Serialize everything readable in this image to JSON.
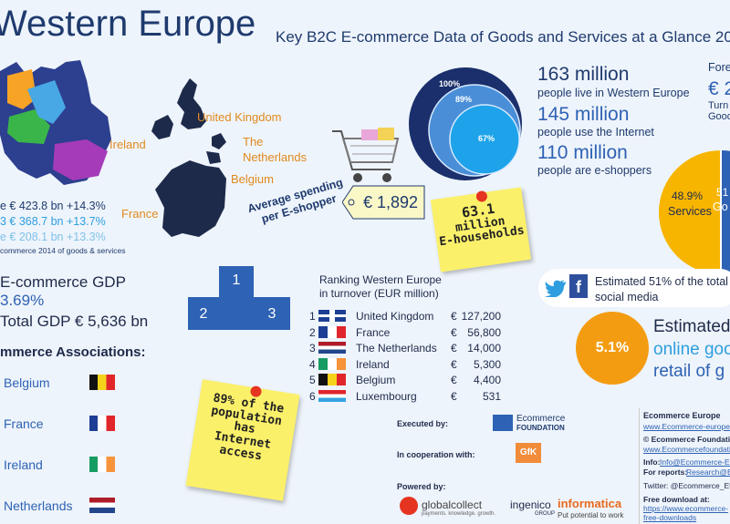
{
  "header": {
    "title": "Western Europe",
    "subtitle": "Key B2C E-commerce Data of Goods and Services at a Glance 201"
  },
  "map_labels": {
    "uk": "United Kingdom",
    "ireland": "Ireland",
    "netherlands_1": "The",
    "netherlands_2": "Netherlands",
    "belgium": "Belgium",
    "france": "France"
  },
  "turnover": {
    "line1": "e € 423.8 bn +14.3%",
    "line2": "3 € 368.7 bn +13.7%",
    "line3": "e € 208.1 bn +13.3%",
    "caption": "commerce 2014 of goods & services"
  },
  "spending": {
    "label_1": "Average spending",
    "label_2": "per E-shopper",
    "value": "€ 1,892"
  },
  "population": {
    "circle_outer": "100%",
    "circle_mid": "89%",
    "circle_inner": "67%",
    "s1_num": "163 million",
    "s1_txt": "people live in Western Europe",
    "s2_num": "145 million",
    "s2_txt": "people use the Internet",
    "s3_num": "110 million",
    "s3_txt": "people are e-shoppers"
  },
  "forecast": {
    "label": "Fore",
    "value": "€ 2",
    "line1": "Turn",
    "line2": "Good"
  },
  "pie": {
    "services_pct": "48.9%",
    "services_label": "Services",
    "goods_pct": "51",
    "goods_label": "Go"
  },
  "households": {
    "l1": "63.1",
    "l2": "million",
    "l3": "E-households"
  },
  "gdp": {
    "title": "E-commerce GDP",
    "pct": "3.69%",
    "total": "Total GDP € 5,636 bn"
  },
  "podium": {
    "first": "1",
    "second": "2",
    "third": "3"
  },
  "ranking": {
    "title_1": "Ranking Western Europe",
    "title_2": "in turnover (EUR million)",
    "rows": [
      {
        "rank": "1",
        "country": "United Kingdom",
        "cur": "€",
        "value": "127,200"
      },
      {
        "rank": "2",
        "country": "France",
        "cur": "€",
        "value": "56,800"
      },
      {
        "rank": "3",
        "country": "The Netherlands",
        "cur": "€",
        "value": "14,000"
      },
      {
        "rank": "4",
        "country": "Ireland",
        "cur": "€",
        "value": "5,300"
      },
      {
        "rank": "5",
        "country": "Belgium",
        "cur": "€",
        "value": "4,400"
      },
      {
        "rank": "6",
        "country": "Luxembourg",
        "cur": "€",
        "value": "531"
      }
    ]
  },
  "associations": {
    "title": "mmerce Associations:",
    "items": [
      "Belgium",
      "France",
      "Ireland",
      "Netherlands"
    ]
  },
  "internet_note": {
    "l1": "89% of the",
    "l2": "population",
    "l3": "has",
    "l4": "Internet",
    "l5": "access"
  },
  "social": {
    "l1": "Estimated 51% of the total",
    "l2": "social media"
  },
  "online": {
    "pct": "5.1%",
    "l1": "Estimated",
    "l2": "online goo",
    "l3": "retail of g"
  },
  "credits": {
    "executed_by": "Executed by:",
    "cooperation": "In cooperation with:",
    "powered_by": "Powered by:",
    "ecom_foundation_1": "Ecommerce",
    "ecom_foundation_2": "FOUNDATION",
    "gfk": "GfK",
    "globalcollect": "globalcollect",
    "globalcollect_tag": "payments. knowledge. growth.",
    "ingenico": "ingenico",
    "ingenico_sub": "GROUP",
    "informatica": "informatica",
    "informatica_tag": "Put potential to work"
  },
  "contact": {
    "org": "Ecommerce Europe",
    "org_url": "www.Ecommerce-europe.eu",
    "foundation": "© Ecommerce Foundation (",
    "foundation_url": "www.Ecommercefoundation.org",
    "info_label": "Info:",
    "info_email": "Info@Ecommerce-Eur",
    "reports_label": "For reports:",
    "reports_email": "Research@Ecom",
    "twitter": "Twitter: @Ecommerce_EU",
    "download": "Free download at:",
    "download_url1": "https://www.ecommerce-",
    "download_url2": "free-downloads"
  },
  "colors": {
    "brand_blue": "#1e3a6e",
    "accent_blue": "#2e62b4",
    "note_yellow": "#fbf06a",
    "pie_services": "#f7b500",
    "pie_goods": "#2e62b4",
    "online_orange": "#f39c12"
  }
}
